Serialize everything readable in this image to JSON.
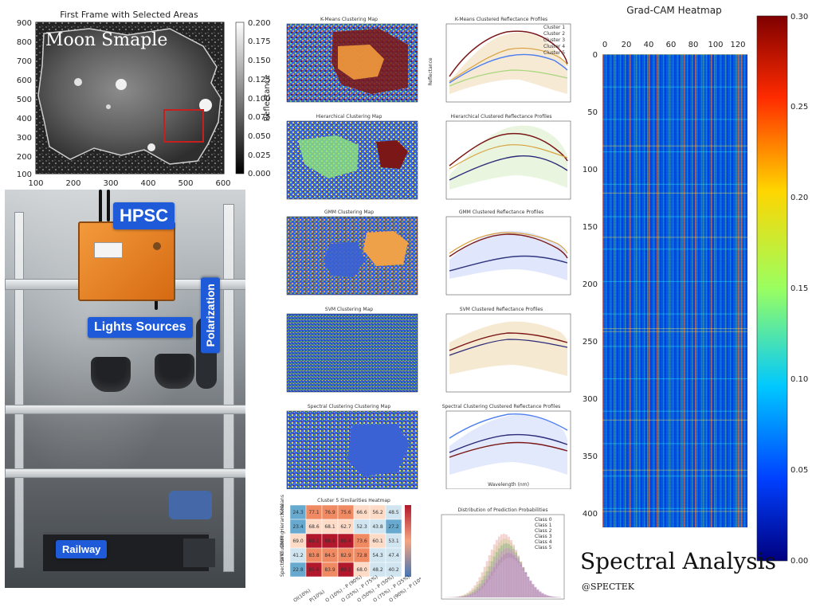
{
  "top_plot": {
    "title": "First Frame with Selected Areas",
    "overlay_label": "Moon Smaple",
    "y_ticks": [
      "900",
      "800",
      "700",
      "600",
      "500",
      "400",
      "300",
      "200",
      "100"
    ],
    "x_ticks": [
      "100",
      "200",
      "300",
      "400",
      "500",
      "600"
    ],
    "colorbar_ticks": [
      "0.200",
      "0.175",
      "0.150",
      "0.125",
      "0.100",
      "0.075",
      "0.050",
      "0.025",
      "0.000"
    ],
    "colorbar_label": "Reflectance",
    "selection_color": "#c51f1f"
  },
  "setup_photo": {
    "labels": {
      "hpsc": "HPSC",
      "lights": "Lights Sources",
      "polarization": "Polarization",
      "railway": "Railway"
    },
    "tag_color": "#1f5bd8"
  },
  "cluster_maps": [
    {
      "title": "K-Means Clustering Map",
      "palette": [
        "#3b65d7",
        "#7de071",
        "#f19a3d",
        "#7b1717"
      ]
    },
    {
      "title": "Hierarchical Clustering Map",
      "palette": [
        "#3b65d7",
        "#8fe37f",
        "#e6d24c",
        "#7b1717"
      ]
    },
    {
      "title": "GMM Clustering Map",
      "palette": [
        "#3a62d4",
        "#efa14a",
        "#6ea75d",
        "#8a2f2f"
      ]
    },
    {
      "title": "SVM Clustering Map",
      "palette": [
        "#3a62d4",
        "#6ad35e",
        "#d9d548",
        "#7b1717"
      ]
    },
    {
      "title": "Spectral Clustering Clustering Map",
      "palette": [
        "#3a62d4",
        "#d8dd4d",
        "#6ad35e",
        "#7b1717"
      ]
    }
  ],
  "profiles": [
    {
      "title": "K-Means Clustered Reflectance Profiles",
      "legend": [
        "Cluster 1",
        "Cluster 2",
        "Cluster 3",
        "Cluster 4",
        "Cluster 5"
      ],
      "colors": [
        "#4d7ff0",
        "#d8a13f",
        "#a6d77a",
        "#7b1717",
        "#b27bd6"
      ]
    },
    {
      "title": "Hierarchical Clustered Reflectance Profiles",
      "legend": [],
      "colors": [
        "#2b2b7a",
        "#d8a13f",
        "#a6d77a",
        "#7b1717",
        "#8ea9f4"
      ]
    },
    {
      "title": "GMM Clustered Reflectance Profiles",
      "legend": [],
      "colors": [
        "#303580",
        "#d8a13f",
        "#a6d77a",
        "#7b1717",
        "#8ea9f4"
      ]
    },
    {
      "title": "SVM Clustered Reflectance Profiles",
      "legend": [],
      "colors": [
        "#2b2b7a",
        "#d8a13f",
        "#a6d77a",
        "#7b1717",
        "#8ea9f4"
      ]
    },
    {
      "title": "Spectral Clustering Clustered Reflectance Profiles",
      "legend": [],
      "colors": [
        "#2b2b7a",
        "#d8a13f",
        "#a6d77a",
        "#7b1717",
        "#8ea9f4"
      ]
    }
  ],
  "profile_axis": {
    "x_label": "Wavelength (nm)",
    "y_label": "Reflectance"
  },
  "heatmap_small": {
    "title": "Cluster 5 Similarities Heatmap",
    "row_labels": [
      "K-Means",
      "Hierarchical",
      "GMM",
      "SVM",
      "Spectral Clustering"
    ],
    "col_labels": [
      "Ol(10%)",
      "P(10%)",
      "O (10%) - P (90%)",
      "O (25%) - P (75%)",
      "O (50%) - P (50%)",
      "O (75%) - P (25%)",
      "O (90%) - P (10%)"
    ],
    "values": [
      [
        "24.3",
        "77.1",
        "76.9",
        "75.6",
        "66.6",
        "56.2",
        "48.5"
      ],
      [
        "23.4",
        "68.6",
        "68.1",
        "62.7",
        "52.3",
        "43.8",
        "27.2"
      ],
      [
        "69.0",
        "88.1",
        "88.6",
        "86.4",
        "73.6",
        "60.1",
        "53.1"
      ],
      [
        "41.2",
        "83.8",
        "84.5",
        "82.9",
        "72.8",
        "54.3",
        "47.4"
      ],
      [
        "22.8",
        "85.6",
        "83.9",
        "89.1",
        "68.0",
        "48.2",
        "40.2"
      ]
    ]
  },
  "distribution": {
    "title": "Distribution of Prediction Probabilities",
    "legend": [
      "Class 0",
      "Class 1",
      "Class 2",
      "Class 3",
      "Class 4",
      "Class 5"
    ]
  },
  "gradcam": {
    "title": "Grad-CAM Heatmap",
    "x_ticks": [
      "0",
      "20",
      "40",
      "60",
      "80",
      "100",
      "120"
    ],
    "y_ticks": [
      "0",
      "50",
      "100",
      "150",
      "200",
      "250",
      "300",
      "350",
      "400"
    ],
    "colorbar_ticks": [
      "0.30",
      "0.25",
      "0.20",
      "0.15",
      "0.10",
      "0.05",
      "0.00"
    ]
  },
  "footer": {
    "title": "Spectral Analysis",
    "handle": "@SPECTEK"
  }
}
